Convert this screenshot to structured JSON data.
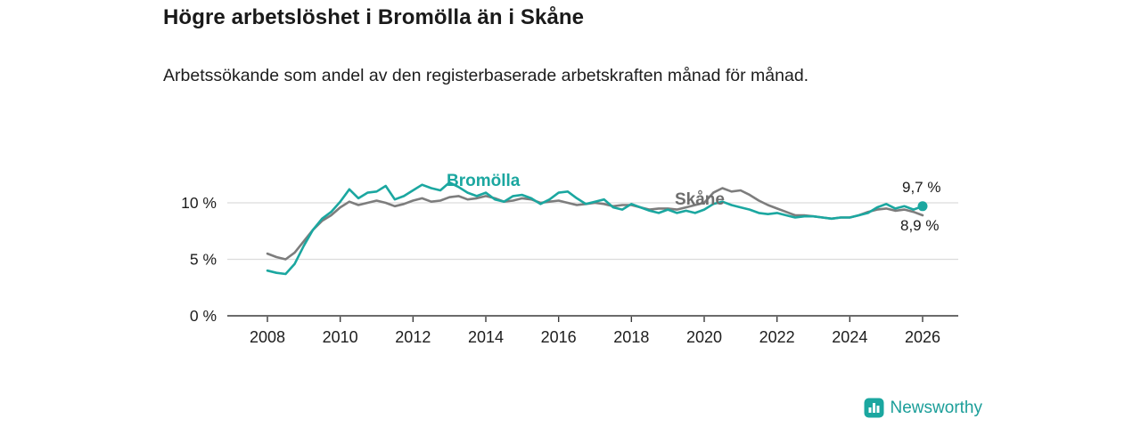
{
  "header": {
    "title": "Högre arbetslöshet i Bromölla än i Skåne",
    "subtitle": "Arbetssökande som andel av den registerbaserade arbetskraften månad för månad."
  },
  "chart_data": {
    "type": "line",
    "title": "Högre arbetslöshet i Bromölla än i Skåne",
    "subtitle": "Arbetssökande som andel av den registerbaserade arbetskraften månad för månad.",
    "xlabel": "",
    "ylabel": "",
    "ylim": [
      0,
      12.6
    ],
    "grid": "horizontal",
    "legend_position": "inline",
    "x": [
      2008,
      2008.25,
      2008.5,
      2008.75,
      2009,
      2009.25,
      2009.5,
      2009.75,
      2010,
      2010.25,
      2010.5,
      2010.75,
      2011,
      2011.25,
      2011.5,
      2011.75,
      2012,
      2012.25,
      2012.5,
      2012.75,
      2013,
      2013.25,
      2013.5,
      2013.75,
      2014,
      2014.25,
      2014.5,
      2014.75,
      2015,
      2015.25,
      2015.5,
      2015.75,
      2016,
      2016.25,
      2016.5,
      2016.75,
      2017,
      2017.25,
      2017.5,
      2017.75,
      2018,
      2018.25,
      2018.5,
      2018.75,
      2019,
      2019.25,
      2019.5,
      2019.75,
      2020,
      2020.25,
      2020.5,
      2020.75,
      2021,
      2021.25,
      2021.5,
      2021.75,
      2022,
      2022.25,
      2022.5,
      2022.75,
      2023,
      2023.25,
      2023.5,
      2023.75,
      2024,
      2024.25,
      2024.5,
      2024.75,
      2025,
      2025.25,
      2025.5,
      2025.75,
      2026
    ],
    "series": [
      {
        "name": "Skåne",
        "color": "#7d7d7d",
        "label_color": "#6e6e6e",
        "end_label": "8,9 %",
        "end_dot": false,
        "values": [
          5.5,
          5.2,
          5.0,
          5.6,
          6.6,
          7.6,
          8.4,
          8.9,
          9.6,
          10.1,
          9.8,
          10.0,
          10.2,
          10.0,
          9.7,
          9.9,
          10.2,
          10.4,
          10.1,
          10.2,
          10.5,
          10.6,
          10.3,
          10.4,
          10.6,
          10.4,
          10.1,
          10.2,
          10.4,
          10.3,
          10.0,
          10.1,
          10.2,
          10.0,
          9.8,
          9.9,
          10.0,
          9.9,
          9.7,
          9.8,
          9.8,
          9.6,
          9.4,
          9.5,
          9.5,
          9.4,
          9.6,
          9.8,
          10.0,
          10.9,
          11.3,
          11.0,
          11.1,
          10.7,
          10.2,
          9.8,
          9.5,
          9.2,
          8.9,
          8.9,
          8.8,
          8.7,
          8.6,
          8.7,
          8.7,
          8.9,
          9.2,
          9.4,
          9.5,
          9.3,
          9.4,
          9.2,
          8.9
        ]
      },
      {
        "name": "Bromölla",
        "color": "#1ba7a0",
        "label_color": "#1ba7a0",
        "end_label": "9,7 %",
        "end_dot": true,
        "values": [
          4.0,
          3.8,
          3.7,
          4.6,
          6.2,
          7.6,
          8.6,
          9.2,
          10.1,
          11.2,
          10.4,
          10.9,
          11.0,
          11.5,
          10.3,
          10.6,
          11.1,
          11.6,
          11.3,
          11.1,
          11.8,
          11.4,
          10.9,
          10.6,
          10.9,
          10.3,
          10.1,
          10.6,
          10.7,
          10.4,
          9.9,
          10.3,
          10.9,
          11.0,
          10.4,
          9.9,
          10.1,
          10.3,
          9.6,
          9.4,
          9.9,
          9.6,
          9.3,
          9.1,
          9.4,
          9.1,
          9.3,
          9.1,
          9.4,
          9.9,
          10.1,
          9.8,
          9.6,
          9.4,
          9.1,
          9.0,
          9.1,
          8.9,
          8.7,
          8.8,
          8.8,
          8.7,
          8.6,
          8.7,
          8.7,
          8.9,
          9.1,
          9.6,
          9.9,
          9.5,
          9.7,
          9.4,
          9.7
        ]
      }
    ],
    "yticks": [
      {
        "value": 0,
        "label": "0 %"
      },
      {
        "value": 5,
        "label": "5 %"
      },
      {
        "value": 10,
        "label": "10 %"
      }
    ],
    "xticks": [
      {
        "value": 2008,
        "label": "2008"
      },
      {
        "value": 2010,
        "label": "2010"
      },
      {
        "value": 2012,
        "label": "2012"
      },
      {
        "value": 2014,
        "label": "2014"
      },
      {
        "value": 2016,
        "label": "2016"
      },
      {
        "value": 2018,
        "label": "2018"
      },
      {
        "value": 2020,
        "label": "2020"
      },
      {
        "value": 2022,
        "label": "2022"
      },
      {
        "value": 2024,
        "label": "2024"
      },
      {
        "value": 2026,
        "label": "2026"
      }
    ]
  },
  "colors": {
    "accent_teal": "#1ba7a0",
    "series_gray": "#7d7d7d",
    "gridline": "#dcdcdc",
    "axis": "#3a3a3a",
    "brand": "#1b9e99"
  },
  "footer": {
    "brand": "Newsworthy"
  }
}
